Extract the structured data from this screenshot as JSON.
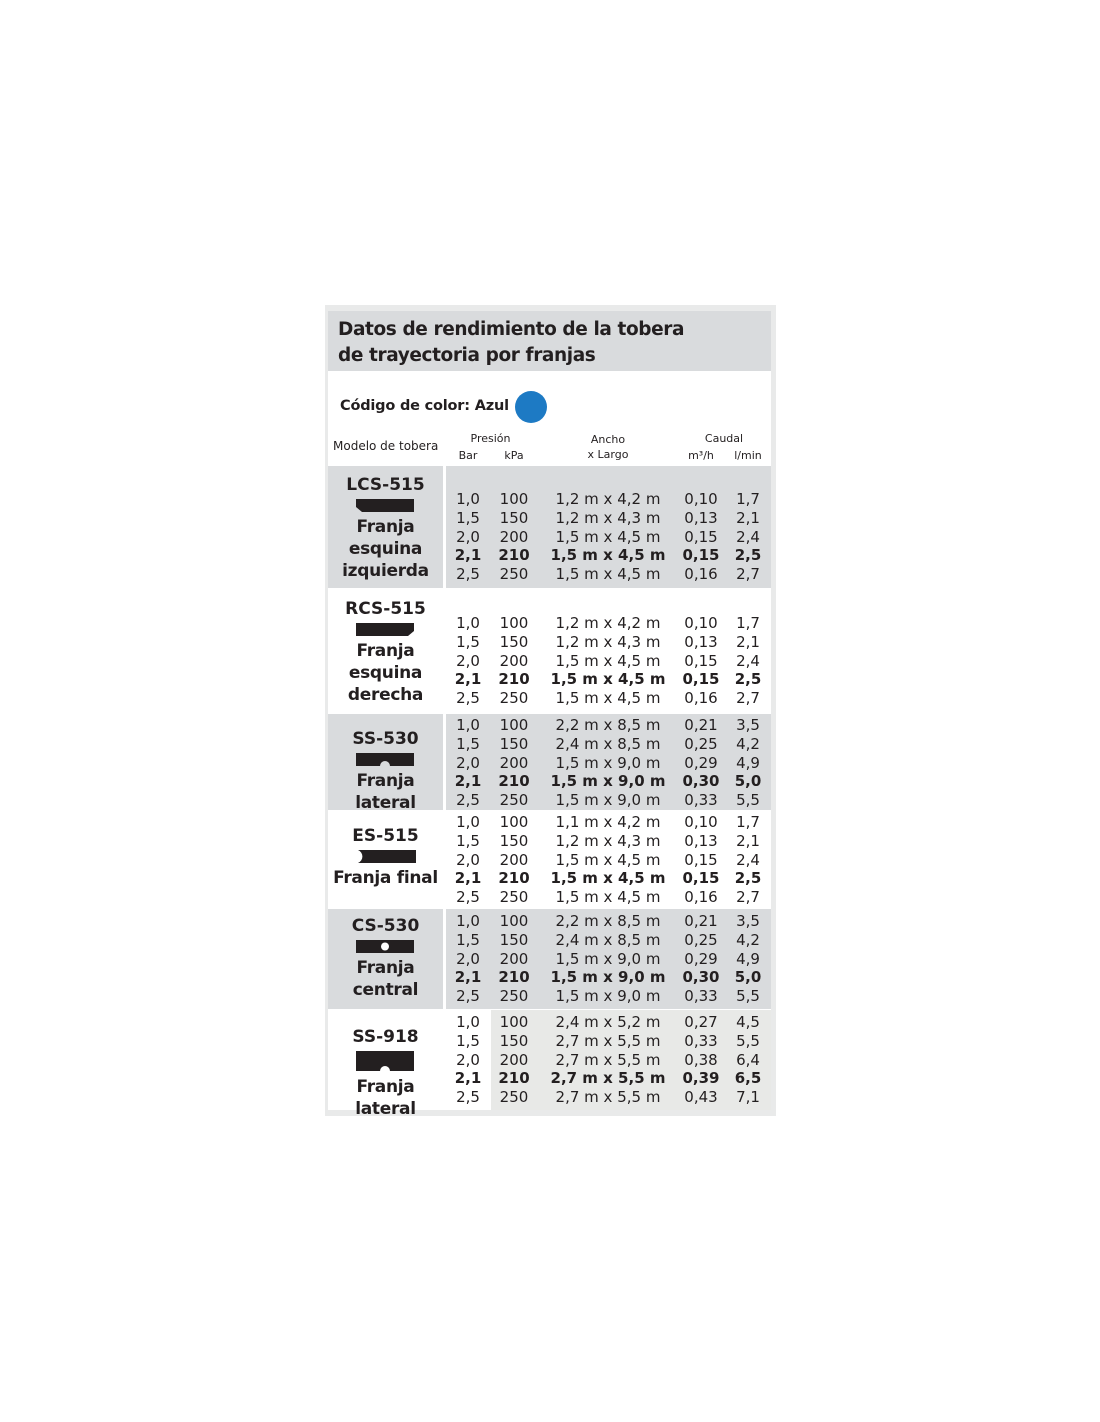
{
  "title": "Datos de rendimiento de la tobera de trayectoria por franjas",
  "color_code": {
    "label": "Código de color: Azul",
    "color": "#1d7ac4"
  },
  "headers": {
    "model": "Modelo de tobera",
    "pressure": "Presión",
    "bar": "Bar",
    "kpa": "kPa",
    "size_l1": "Ancho",
    "size_l2": "x Largo",
    "flow": "Caudal",
    "m3h": "m³/h",
    "lmin": "l/min"
  },
  "colors": {
    "gray": "#d9dbdd",
    "light": "#e8e9e7"
  },
  "models": [
    {
      "name": "LCS-515",
      "desc": [
        "Franja",
        "esquina",
        "izquierda"
      ],
      "icon": "left-corner-strip-icon",
      "rows": [
        [
          "1,0",
          "100",
          "1,2 m x 4,2 m",
          "0,10",
          "1,7"
        ],
        [
          "1,5",
          "150",
          "1,2 m x 4,3 m",
          "0,13",
          "2,1"
        ],
        [
          "2,0",
          "200",
          "1,5 m x 4,5 m",
          "0,15",
          "2,4"
        ],
        [
          "2,1",
          "210",
          "1,5 m x 4,5 m",
          "0,15",
          "2,5"
        ],
        [
          "2,5",
          "250",
          "1,5 m x 4,5 m",
          "0,16",
          "2,7"
        ]
      ]
    },
    {
      "name": "RCS-515",
      "desc": [
        "Franja",
        "esquina",
        "derecha"
      ],
      "icon": "right-corner-strip-icon",
      "rows": [
        [
          "1,0",
          "100",
          "1,2 m x 4,2 m",
          "0,10",
          "1,7"
        ],
        [
          "1,5",
          "150",
          "1,2 m x 4,3 m",
          "0,13",
          "2,1"
        ],
        [
          "2,0",
          "200",
          "1,5 m x 4,5 m",
          "0,15",
          "2,4"
        ],
        [
          "2,1",
          "210",
          "1,5 m x 4,5 m",
          "0,15",
          "2,5"
        ],
        [
          "2,5",
          "250",
          "1,5 m x 4,5 m",
          "0,16",
          "2,7"
        ]
      ]
    },
    {
      "name": "SS-530",
      "desc": [
        "Franja lateral"
      ],
      "icon": "side-strip-icon",
      "rows": [
        [
          "1,0",
          "100",
          "2,2 m x 8,5 m",
          "0,21",
          "3,5"
        ],
        [
          "1,5",
          "150",
          "2,4 m x 8,5 m",
          "0,25",
          "4,2"
        ],
        [
          "2,0",
          "200",
          "1,5 m x 9,0 m",
          "0,29",
          "4,9"
        ],
        [
          "2,1",
          "210",
          "1,5 m x 9,0 m",
          "0,30",
          "5,0"
        ],
        [
          "2,5",
          "250",
          "1,5 m x 9,0 m",
          "0,33",
          "5,5"
        ]
      ]
    },
    {
      "name": "ES-515",
      "desc": [
        "Franja final"
      ],
      "icon": "end-strip-icon",
      "rows": [
        [
          "1,0",
          "100",
          "1,1 m x 4,2 m",
          "0,10",
          "1,7"
        ],
        [
          "1,5",
          "150",
          "1,2 m x 4,3 m",
          "0,13",
          "2,1"
        ],
        [
          "2,0",
          "200",
          "1,5 m x 4,5 m",
          "0,15",
          "2,4"
        ],
        [
          "2,1",
          "210",
          "1,5 m x 4,5 m",
          "0,15",
          "2,5"
        ],
        [
          "2,5",
          "250",
          "1,5 m x 4,5 m",
          "0,16",
          "2,7"
        ]
      ]
    },
    {
      "name": "CS-530",
      "desc": [
        "Franja",
        "central"
      ],
      "icon": "center-strip-icon",
      "rows": [
        [
          "1,0",
          "100",
          "2,2 m x 8,5 m",
          "0,21",
          "3,5"
        ],
        [
          "1,5",
          "150",
          "2,4 m x 8,5 m",
          "0,25",
          "4,2"
        ],
        [
          "2,0",
          "200",
          "1,5 m x 9,0 m",
          "0,29",
          "4,9"
        ],
        [
          "2,1",
          "210",
          "1,5 m x 9,0 m",
          "0,30",
          "5,0"
        ],
        [
          "2,5",
          "250",
          "1,5 m x 9,0 m",
          "0,33",
          "5,5"
        ]
      ]
    },
    {
      "name": "SS-918",
      "desc": [
        "Franja lateral"
      ],
      "icon": "side-strip-wide-icon",
      "rows": [
        [
          "1,0",
          "100",
          "2,4 m x 5,2 m",
          "0,27",
          "4,5"
        ],
        [
          "1,5",
          "150",
          "2,7 m x 5,5 m",
          "0,33",
          "5,5"
        ],
        [
          "2,0",
          "200",
          "2,7 m x 5,5 m",
          "0,38",
          "6,4"
        ],
        [
          "2,1",
          "210",
          "2,7 m x 5,5 m",
          "0,39",
          "6,5"
        ],
        [
          "2,5",
          "250",
          "2,7 m x 5,5 m",
          "0,43",
          "7,1"
        ]
      ]
    }
  ]
}
